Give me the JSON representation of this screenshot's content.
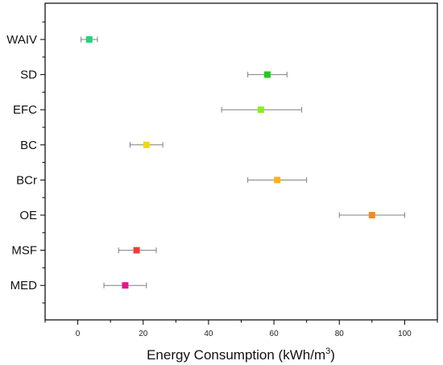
{
  "chart_data": {
    "type": "scatter",
    "orientation": "horizontal",
    "title": "",
    "xlabel_text": "Energy Consumption (kWh/m",
    "xlabel_superscript": "3",
    "xlabel_close": ")",
    "ylabel": "",
    "xlim": [
      -10,
      110
    ],
    "xticks": [
      0,
      20,
      40,
      60,
      80,
      100
    ],
    "grid": false,
    "legend": "none",
    "errorbar_color": "#808080",
    "categories": [
      "WAIV",
      "SD",
      "EFC",
      "BC",
      "BCr",
      "OE",
      "MSF",
      "MED"
    ],
    "points": [
      {
        "label": "WAIV",
        "value": 3.5,
        "err_low": 1,
        "err_high": 6,
        "color": "#1cd67d"
      },
      {
        "label": "SD",
        "value": 58,
        "err_low": 52,
        "err_high": 64,
        "color": "#22cc1c"
      },
      {
        "label": "EFC",
        "value": 56,
        "err_low": 44,
        "err_high": 68.5,
        "color": "#88ee22"
      },
      {
        "label": "BC",
        "value": 21,
        "err_low": 16,
        "err_high": 26,
        "color": "#f0d814"
      },
      {
        "label": "BCr",
        "value": 61,
        "err_low": 52,
        "err_high": 70,
        "color": "#ffb31a"
      },
      {
        "label": "OE",
        "value": 90,
        "err_low": 80,
        "err_high": 100,
        "color": "#f58a1e"
      },
      {
        "label": "MSF",
        "value": 18,
        "err_low": 12.5,
        "err_high": 24,
        "color": "#f03c3c"
      },
      {
        "label": "MED",
        "value": 14.5,
        "err_low": 8,
        "err_high": 21,
        "color": "#e5158a"
      }
    ]
  }
}
